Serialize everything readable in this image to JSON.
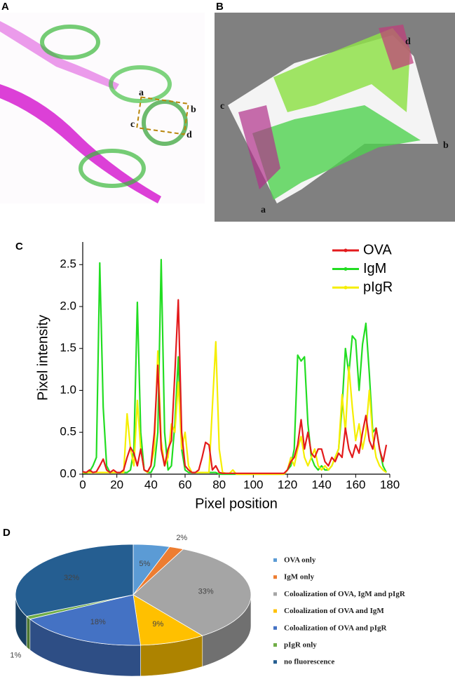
{
  "panel_labels": [
    "A",
    "B",
    "C",
    "D"
  ],
  "image_a": {
    "points": [
      "a",
      "b",
      "c",
      "d"
    ]
  },
  "image_b": {
    "points": [
      "a",
      "b",
      "c",
      "d"
    ]
  },
  "chart_data": [
    {
      "type": "line",
      "xlabel": "Pixel position",
      "ylabel": "Pixel intensity",
      "x": [
        0,
        2,
        4,
        6,
        8,
        10,
        12,
        14,
        16,
        18,
        20,
        22,
        24,
        26,
        28,
        30,
        32,
        34,
        36,
        38,
        40,
        42,
        44,
        46,
        48,
        50,
        52,
        54,
        56,
        58,
        60,
        62,
        64,
        66,
        68,
        70,
        72,
        74,
        76,
        78,
        80,
        82,
        84,
        86,
        88,
        90,
        92,
        94,
        96,
        98,
        100,
        102,
        104,
        106,
        108,
        110,
        112,
        114,
        116,
        118,
        120,
        122,
        124,
        126,
        128,
        130,
        132,
        134,
        136,
        138,
        140,
        142,
        144,
        146,
        148,
        150,
        152,
        154,
        156,
        158,
        160,
        162,
        164,
        166,
        168,
        170,
        172,
        174,
        176,
        178
      ],
      "series": [
        {
          "name": "OVA",
          "color": "#e31a1c",
          "values": [
            0.03,
            0.02,
            0.05,
            0.02,
            0.03,
            0.1,
            0.18,
            0.05,
            0.02,
            0.05,
            0.02,
            0.02,
            0.05,
            0.2,
            0.32,
            0.25,
            0.1,
            0.3,
            0.05,
            0.03,
            0.1,
            0.5,
            1.3,
            0.3,
            0.1,
            0.3,
            0.4,
            1.2,
            2.08,
            0.5,
            0.1,
            0.05,
            0.02,
            0.02,
            0.05,
            0.2,
            0.38,
            0.35,
            0.05,
            0.1,
            0.02,
            0.01,
            0.01,
            0.01,
            0.01,
            0.01,
            0.01,
            0.01,
            0.01,
            0.01,
            0.01,
            0.01,
            0.01,
            0.01,
            0.01,
            0.01,
            0.01,
            0.01,
            0.01,
            0.01,
            0.05,
            0.15,
            0.2,
            0.35,
            0.65,
            0.3,
            0.5,
            0.25,
            0.2,
            0.3,
            0.3,
            0.15,
            0.1,
            0.2,
            0.15,
            0.25,
            0.2,
            0.55,
            0.3,
            0.2,
            0.35,
            0.25,
            0.5,
            0.7,
            0.4,
            0.3,
            0.55,
            0.3,
            0.15,
            0.35
          ]
        },
        {
          "name": "IgM",
          "color": "#22dd22",
          "values": [
            0.02,
            0.01,
            0.03,
            0.1,
            0.2,
            2.52,
            0.8,
            0.1,
            0.02,
            0.02,
            0.02,
            0.02,
            0.02,
            0.02,
            0.05,
            0.3,
            2.05,
            0.5,
            0.05,
            0.02,
            0.02,
            0.1,
            0.5,
            2.56,
            0.5,
            0.05,
            0.1,
            0.6,
            1.4,
            0.3,
            0.05,
            0.02,
            0.02,
            0.02,
            0.02,
            0.02,
            0.02,
            0.02,
            0.02,
            0.02,
            0,
            0,
            0,
            0,
            0,
            0,
            0,
            0,
            0,
            0,
            0,
            0,
            0,
            0,
            0,
            0,
            0,
            0,
            0,
            0,
            0.05,
            0.1,
            0.3,
            1.42,
            1.35,
            1.4,
            0.6,
            0.2,
            0.1,
            0.05,
            0.1,
            0.05,
            0.05,
            0.1,
            0.2,
            0.3,
            0.8,
            1.5,
            1.2,
            1.65,
            1.6,
            1.0,
            1.55,
            1.8,
            1.2,
            0.5,
            0.55,
            0.3,
            0.1,
            0.02
          ]
        },
        {
          "name": "pIgR",
          "color": "#f5ee00",
          "values": [
            0.02,
            0.02,
            0.02,
            0.02,
            0.02,
            0.02,
            0.02,
            0.02,
            0.02,
            0.02,
            0.02,
            0.02,
            0.02,
            0.72,
            0.3,
            0.1,
            0.88,
            0.3,
            0.05,
            0.02,
            0.1,
            0.3,
            1.47,
            0.4,
            0.1,
            0.2,
            0.6,
            0.5,
            1.1,
            0.3,
            0.5,
            0.1,
            0.02,
            0.02,
            0.02,
            0.02,
            0.02,
            0.02,
            0.8,
            1.58,
            0.3,
            0.02,
            0.01,
            0.01,
            0.05,
            0,
            0,
            0,
            0,
            0,
            0,
            0,
            0,
            0,
            0,
            0,
            0,
            0,
            0,
            0,
            0.05,
            0.2,
            0.1,
            0.3,
            0.45,
            0.2,
            0.1,
            0.2,
            0.3,
            0.1,
            0.05,
            0.1,
            0.05,
            0.1,
            0.2,
            0.3,
            0.95,
            0.5,
            1.28,
            0.8,
            0.4,
            0.6,
            0.3,
            0.5,
            1.0,
            0.45,
            0.2,
            0.1,
            0.05,
            0.02
          ]
        }
      ],
      "xlim": [
        0,
        180
      ],
      "xticks": [
        0,
        20,
        40,
        60,
        80,
        100,
        120,
        140,
        160,
        180
      ],
      "ylim": [
        0,
        2.77
      ],
      "yticks": [
        {
          "value": 0,
          "label": "0.0"
        },
        {
          "value": 0.5,
          "label": "0.5"
        },
        {
          "value": 1,
          "label": "1.0"
        },
        {
          "value": 1.5,
          "label": "1.5"
        },
        {
          "value": 2,
          "label": "2.0"
        },
        {
          "value": 2.5,
          "label": "2.5"
        }
      ],
      "grid": false,
      "legend": "upper right"
    },
    {
      "type": "pie",
      "categories": [
        "OVA only",
        "IgM only",
        "Coloalization of OVA, IgM and pIgR",
        "Coloalization of OVA and IgM",
        "Coloalization of OVA and pIgR",
        "pIgR only",
        "no fluorescence"
      ],
      "values": [
        5,
        2,
        33,
        9,
        18,
        1,
        32
      ],
      "value_labels": [
        "5%",
        "2%",
        "33%",
        "9%",
        "18%",
        "1%",
        "32%"
      ],
      "colors": [
        "#5b9bd5",
        "#ed7d31",
        "#a5a5a5",
        "#ffc000",
        "#4472c4",
        "#70ad47",
        "#255e91"
      ],
      "legend": "right"
    }
  ]
}
